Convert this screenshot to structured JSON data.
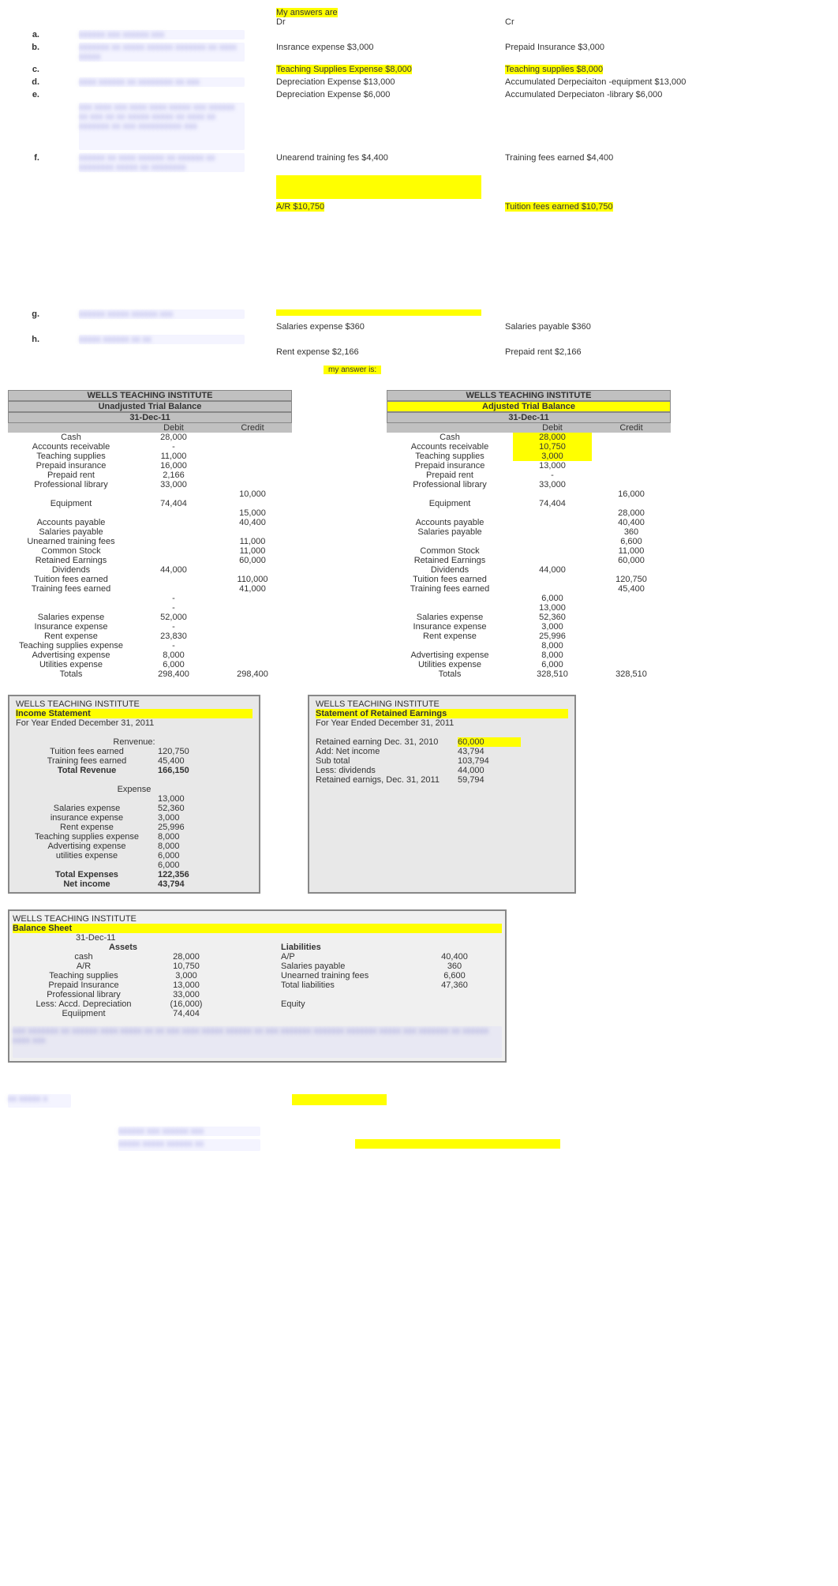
{
  "header": {
    "my_answers": "My answers are",
    "dr": "Dr",
    "cr": "Cr"
  },
  "entries": {
    "a": {
      "letter": "a.",
      "q": "xxxxxx xxx xxxxxx xxx"
    },
    "b": {
      "letter": "b.",
      "q": "xxxxxxx xx xxxxx xxxxxx xxxxxxx xx xxxx xxxxx"
    },
    "c": {
      "letter": "c.",
      "q": "",
      "dr": "Insrance expense $3,000",
      "cr": "Prepaid Insurance $3,000"
    },
    "c2": {
      "dr": "Teaching Supplies Expense $8,000",
      "cr": "Teaching supplies $8,000"
    },
    "d": {
      "letter": "d.",
      "q": "xxxx xxxxxx xx xxxxxxxx xx xxx",
      "dr": "Depreciation Expense $13,000",
      "cr": "Accumulated Derpeciaiton -equipment $13,000"
    },
    "e": {
      "letter": "e.",
      "q": "",
      "dr": "Depreciation Expense $6,000",
      "cr": "Accumulated Derpeciaton -library $6,000"
    },
    "e_blur": "xxx xxxx xxx xxxx xxxx xxxxx xxx xxxxxx xx xxx xx xx xxxxx xxxxx xx xxxx xx xxxxxxx xx xxx xxxxxxxxxx xxx",
    "f": {
      "letter": "f.",
      "q": "xxxxxx xx xxxx xxxxxx xx xxxxxx xx xxxxxxxx xxxxx xx xxxxxxxx",
      "dr": "Unearend training fes $4,400",
      "cr": "Training fees earned $4,400"
    },
    "f2": {
      "dr": "A/R $10,750",
      "cr": "Tuition fees earned $10,750"
    },
    "g": {
      "letter": "g.",
      "q": "xxxxxx xxxxx xxxxxx xxx",
      "dr": "Salaries expense $360",
      "cr": "Salaries payable $360"
    },
    "h": {
      "letter": "h.",
      "q": "xxxxx xxxxxx xx xx",
      "dr": "Rent expense $2,166",
      "cr": "Prepaid rent $2,166"
    }
  },
  "my_answer_is": "my answer is:",
  "unadjusted": {
    "title": "WELLS TEACHING INSTITUTE",
    "subtitle": "Unadjusted Trial Balance",
    "date": "31-Dec-11",
    "debit_h": "Debit",
    "credit_h": "Credit",
    "rows": [
      {
        "label": "Cash",
        "d": "28,000",
        "c": ""
      },
      {
        "label": "Accounts receivable",
        "d": "-",
        "c": ""
      },
      {
        "label": "Teaching supplies",
        "d": "11,000",
        "c": ""
      },
      {
        "label": "Prepaid insurance",
        "d": "16,000",
        "c": ""
      },
      {
        "label": "Prepaid rent",
        "d": "2,166",
        "c": ""
      },
      {
        "label": "Professional library",
        "d": "33,000",
        "c": ""
      },
      {
        "label": "",
        "d": "",
        "c": "10,000"
      },
      {
        "label": "Equipment",
        "d": "74,404",
        "c": ""
      },
      {
        "label": "",
        "d": "",
        "c": "15,000"
      },
      {
        "label": "Accounts payable",
        "d": "",
        "c": "40,400"
      },
      {
        "label": "Salaries payable",
        "d": "",
        "c": ""
      },
      {
        "label": "Unearned training fees",
        "d": "",
        "c": "11,000"
      },
      {
        "label": "Common Stock",
        "d": "",
        "c": "11,000"
      },
      {
        "label": "Retained Earnings",
        "d": "",
        "c": "60,000"
      },
      {
        "label": "Dividends",
        "d": "44,000",
        "c": ""
      },
      {
        "label": "Tuition fees earned",
        "d": "",
        "c": "110,000"
      },
      {
        "label": "Training fees earned",
        "d": "",
        "c": "41,000"
      },
      {
        "label": "",
        "d": "-",
        "c": ""
      },
      {
        "label": "",
        "d": "-",
        "c": ""
      },
      {
        "label": "Salaries expense",
        "d": "52,000",
        "c": ""
      },
      {
        "label": "Insurance expense",
        "d": "-",
        "c": ""
      },
      {
        "label": "Rent expense",
        "d": "23,830",
        "c": ""
      },
      {
        "label": "Teaching supplies expense",
        "d": "-",
        "c": ""
      },
      {
        "label": "Advertising expense",
        "d": "8,000",
        "c": ""
      },
      {
        "label": "Utilities expense",
        "d": "6,000",
        "c": ""
      },
      {
        "label": "Totals",
        "d": "298,400",
        "c": "298,400"
      }
    ]
  },
  "adjusted": {
    "title": "WELLS TEACHING INSTITUTE",
    "subtitle": "Adjusted Trial Balance",
    "date": "31-Dec-11",
    "debit_h": "Debit",
    "credit_h": "Credit",
    "rows": [
      {
        "label": "Cash",
        "d": "28,000",
        "c": "",
        "hl": true
      },
      {
        "label": "Accounts receivable",
        "d": "10,750",
        "c": "",
        "hl": true
      },
      {
        "label": "Teaching supplies",
        "d": "3,000",
        "c": "",
        "hl": true
      },
      {
        "label": "Prepaid insurance",
        "d": "13,000",
        "c": ""
      },
      {
        "label": "Prepaid rent",
        "d": "-",
        "c": ""
      },
      {
        "label": "Professional library",
        "d": "33,000",
        "c": ""
      },
      {
        "label": "",
        "d": "",
        "c": "16,000"
      },
      {
        "label": "Equipment",
        "d": "74,404",
        "c": ""
      },
      {
        "label": "",
        "d": "",
        "c": "28,000"
      },
      {
        "label": "Accounts payable",
        "d": "",
        "c": "40,400"
      },
      {
        "label": "Salaries payable",
        "d": "",
        "c": "360"
      },
      {
        "label": "",
        "d": "",
        "c": "6,600"
      },
      {
        "label": "Common Stock",
        "d": "",
        "c": "11,000"
      },
      {
        "label": "Retained Earnings",
        "d": "",
        "c": "60,000"
      },
      {
        "label": "Dividends",
        "d": "44,000",
        "c": ""
      },
      {
        "label": "Tuition fees earned",
        "d": "",
        "c": "120,750"
      },
      {
        "label": "Training fees earned",
        "d": "",
        "c": "45,400"
      },
      {
        "label": "",
        "d": "6,000",
        "c": ""
      },
      {
        "label": "",
        "d": "13,000",
        "c": ""
      },
      {
        "label": "Salaries expense",
        "d": "52,360",
        "c": ""
      },
      {
        "label": "Insurance expense",
        "d": "3,000",
        "c": ""
      },
      {
        "label": "Rent expense",
        "d": "25,996",
        "c": ""
      },
      {
        "label": "",
        "d": "8,000",
        "c": ""
      },
      {
        "label": "Advertising expense",
        "d": "8,000",
        "c": ""
      },
      {
        "label": "Utilities expense",
        "d": "6,000",
        "c": ""
      },
      {
        "label": "Totals",
        "d": "328,510",
        "c": "328,510"
      }
    ]
  },
  "income": {
    "title": "WELLS TEACHING INSTITUTE",
    "subtitle": "Income Statement",
    "period": "For Year Ended December 31, 2011",
    "rev_h": "Renvenue:",
    "rows": [
      {
        "l": "Tuition fees earned",
        "v": "120,750"
      },
      {
        "l": "Training fees earned",
        "v": "45,400"
      }
    ],
    "total_rev_l": "Total Revenue",
    "total_rev_v": "166,150",
    "exp_h": "Expense",
    "exp_rows": [
      {
        "l": "",
        "v": "13,000"
      },
      {
        "l": "Salaries expense",
        "v": "52,360"
      },
      {
        "l": "insurance expense",
        "v": "3,000"
      },
      {
        "l": "Rent expense",
        "v": "25,996"
      },
      {
        "l": "Teaching supplies expense",
        "v": "8,000"
      },
      {
        "l": "Advertising expense",
        "v": "8,000"
      },
      {
        "l": "utilities expense",
        "v": "6,000"
      },
      {
        "l": "",
        "v": "6,000"
      }
    ],
    "total_exp_l": "Total Expenses",
    "total_exp_v": "122,356",
    "ni_l": "Net income",
    "ni_v": "43,794"
  },
  "retained": {
    "title": "WELLS TEACHING INSTITUTE",
    "subtitle": "Statement of Retained Earnings",
    "period": "For Year Ended December 31, 2011",
    "rows": [
      {
        "l": "Retained earning Dec. 31, 2010",
        "v": "60,000",
        "hl": true
      },
      {
        "l": "Add: Net income",
        "v": "43,794"
      },
      {
        "l": "Sub total",
        "v": "103,794"
      },
      {
        "l": "",
        "v": ""
      },
      {
        "l": "Less: dividends",
        "v": "44,000"
      },
      {
        "l": "Retained earnigs, Dec. 31, 2011",
        "v": "59,794"
      }
    ]
  },
  "bs": {
    "title": "WELLS TEACHING INSTITUTE",
    "subtitle": "Balance Sheet",
    "date": "31-Dec-11",
    "assets_h": "Assets",
    "assets": [
      {
        "l": "cash",
        "v": "28,000"
      },
      {
        "l": "A/R",
        "v": "10,750"
      },
      {
        "l": "Teaching supplies",
        "v": "3,000"
      },
      {
        "l": "Prepaid Insurance",
        "v": "13,000"
      },
      {
        "l": "Professional library",
        "v": "33,000"
      },
      {
        "l": "Less: Accd. Depreciation",
        "v": "(16,000)"
      },
      {
        "l": "Equiipment",
        "v": "74,404"
      }
    ],
    "liab_h": "Liabilities",
    "liab": [
      {
        "l": "A/P",
        "v": "40,400"
      },
      {
        "l": "Salaries payable",
        "v": "360"
      },
      {
        "l": "Unearned training fees",
        "v": "6,600"
      },
      {
        "l": "Total liabilities",
        "v": "47,360"
      }
    ],
    "equity_h": "Equity"
  },
  "bottom": {
    "p3": "xxx xxxxxxx xx xxxxxx xxxx xxxxx xx xx xxx xxxx xxxxx xxxxxx xx xxx xxxxxxx xxxxxxx xxxxxxx xxxxx xxx xxxxxxx xx xxxxxx xxxx xxx",
    "part2": "xx xxxxx x",
    "q1": "xxxxxx xxx xxxxxx xxx",
    "q2": "xxxxx xxxxx xxxxxx xx"
  }
}
